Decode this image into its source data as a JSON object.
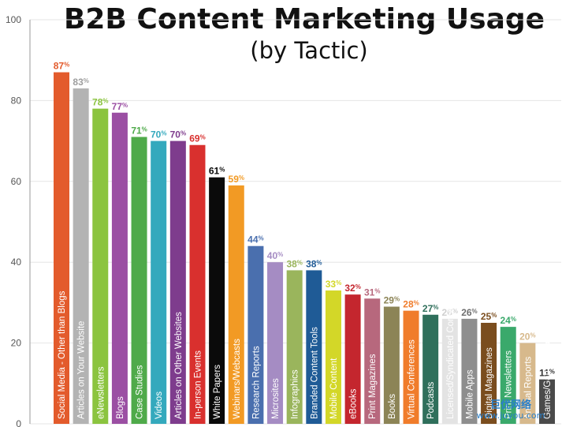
{
  "chart_data": {
    "type": "bar",
    "title": "B2B Content Marketing Usage",
    "subtitle": "(by Tactic)",
    "ylim": [
      0,
      100
    ],
    "yticks": [
      0,
      20,
      40,
      60,
      80,
      100
    ],
    "value_suffix": "%",
    "grid": true,
    "categories": [
      "Social Media - Other than Blogs",
      "Articles on Your Website",
      "eNewsletters",
      "Blogs",
      "Case Studies",
      "Videos",
      "Articles on Other Websites",
      "In-person Events",
      "White Papers",
      "Webinars/Webcasts",
      "Research Reports",
      "Microsites",
      "Infographics",
      "Branded Content Tools",
      "Mobile Content",
      "eBooks",
      "Print Magazines",
      "Books",
      "Virtual Conferences",
      "Podcasts",
      "Licensed/Syndicated Content",
      "Mobile Apps",
      "Digital Magazines",
      "Print Newsletters",
      "Annual Reports",
      "Games/Gamification"
    ],
    "values": [
      87,
      83,
      78,
      77,
      71,
      70,
      70,
      69,
      61,
      59,
      44,
      40,
      38,
      38,
      33,
      32,
      31,
      29,
      28,
      27,
      26,
      26,
      25,
      24,
      20,
      11
    ],
    "colors": [
      "#e35b2c",
      "#b3b3b3",
      "#8bc43f",
      "#9b4fa3",
      "#4faa4a",
      "#34a9bd",
      "#7e3c8d",
      "#d9302e",
      "#0a0a0a",
      "#f29a24",
      "#4a6fae",
      "#a58cc3",
      "#9ab55c",
      "#1f5b96",
      "#d3d728",
      "#c4262e",
      "#b7687d",
      "#8c8456",
      "#f07c2b",
      "#2f6f5b",
      "#e3e3e3",
      "#8e8e8e",
      "#7a4d1e",
      "#3aa96b",
      "#d7b98c",
      "#4a4a4a"
    ],
    "label_colors": [
      "#e35b2c",
      "#9e9e9e",
      "#8bc43f",
      "#9b4fa3",
      "#4faa4a",
      "#34a9bd",
      "#7e3c8d",
      "#d9302e",
      "#0a0a0a",
      "#f29a24",
      "#4a6fae",
      "#a58cc3",
      "#9ab55c",
      "#1f5b96",
      "#d3d728",
      "#c4262e",
      "#b7687d",
      "#8c8456",
      "#f07c2b",
      "#2f6f5b",
      "#d0d0d0",
      "#6e6e6e",
      "#7a4d1e",
      "#3aa96b",
      "#d7b98c",
      "#333333"
    ],
    "text_colors": [
      "#ffffff",
      "#ffffff",
      "#ffffff",
      "#ffffff",
      "#ffffff",
      "#ffffff",
      "#ffffff",
      "#ffffff",
      "#ffffff",
      "#ffffff",
      "#ffffff",
      "#ffffff",
      "#ffffff",
      "#ffffff",
      "#333333",
      "#ffffff",
      "#ffffff",
      "#ffffff",
      "#ffffff",
      "#ffffff",
      "#333333",
      "#ffffff",
      "#ffffff",
      "#ffffff",
      "#ffffff",
      "#ffffff"
    ]
  },
  "watermark": {
    "line1": "巨优网络",
    "line2": "www.juyou.com",
    "color": "#2a7fc9"
  }
}
